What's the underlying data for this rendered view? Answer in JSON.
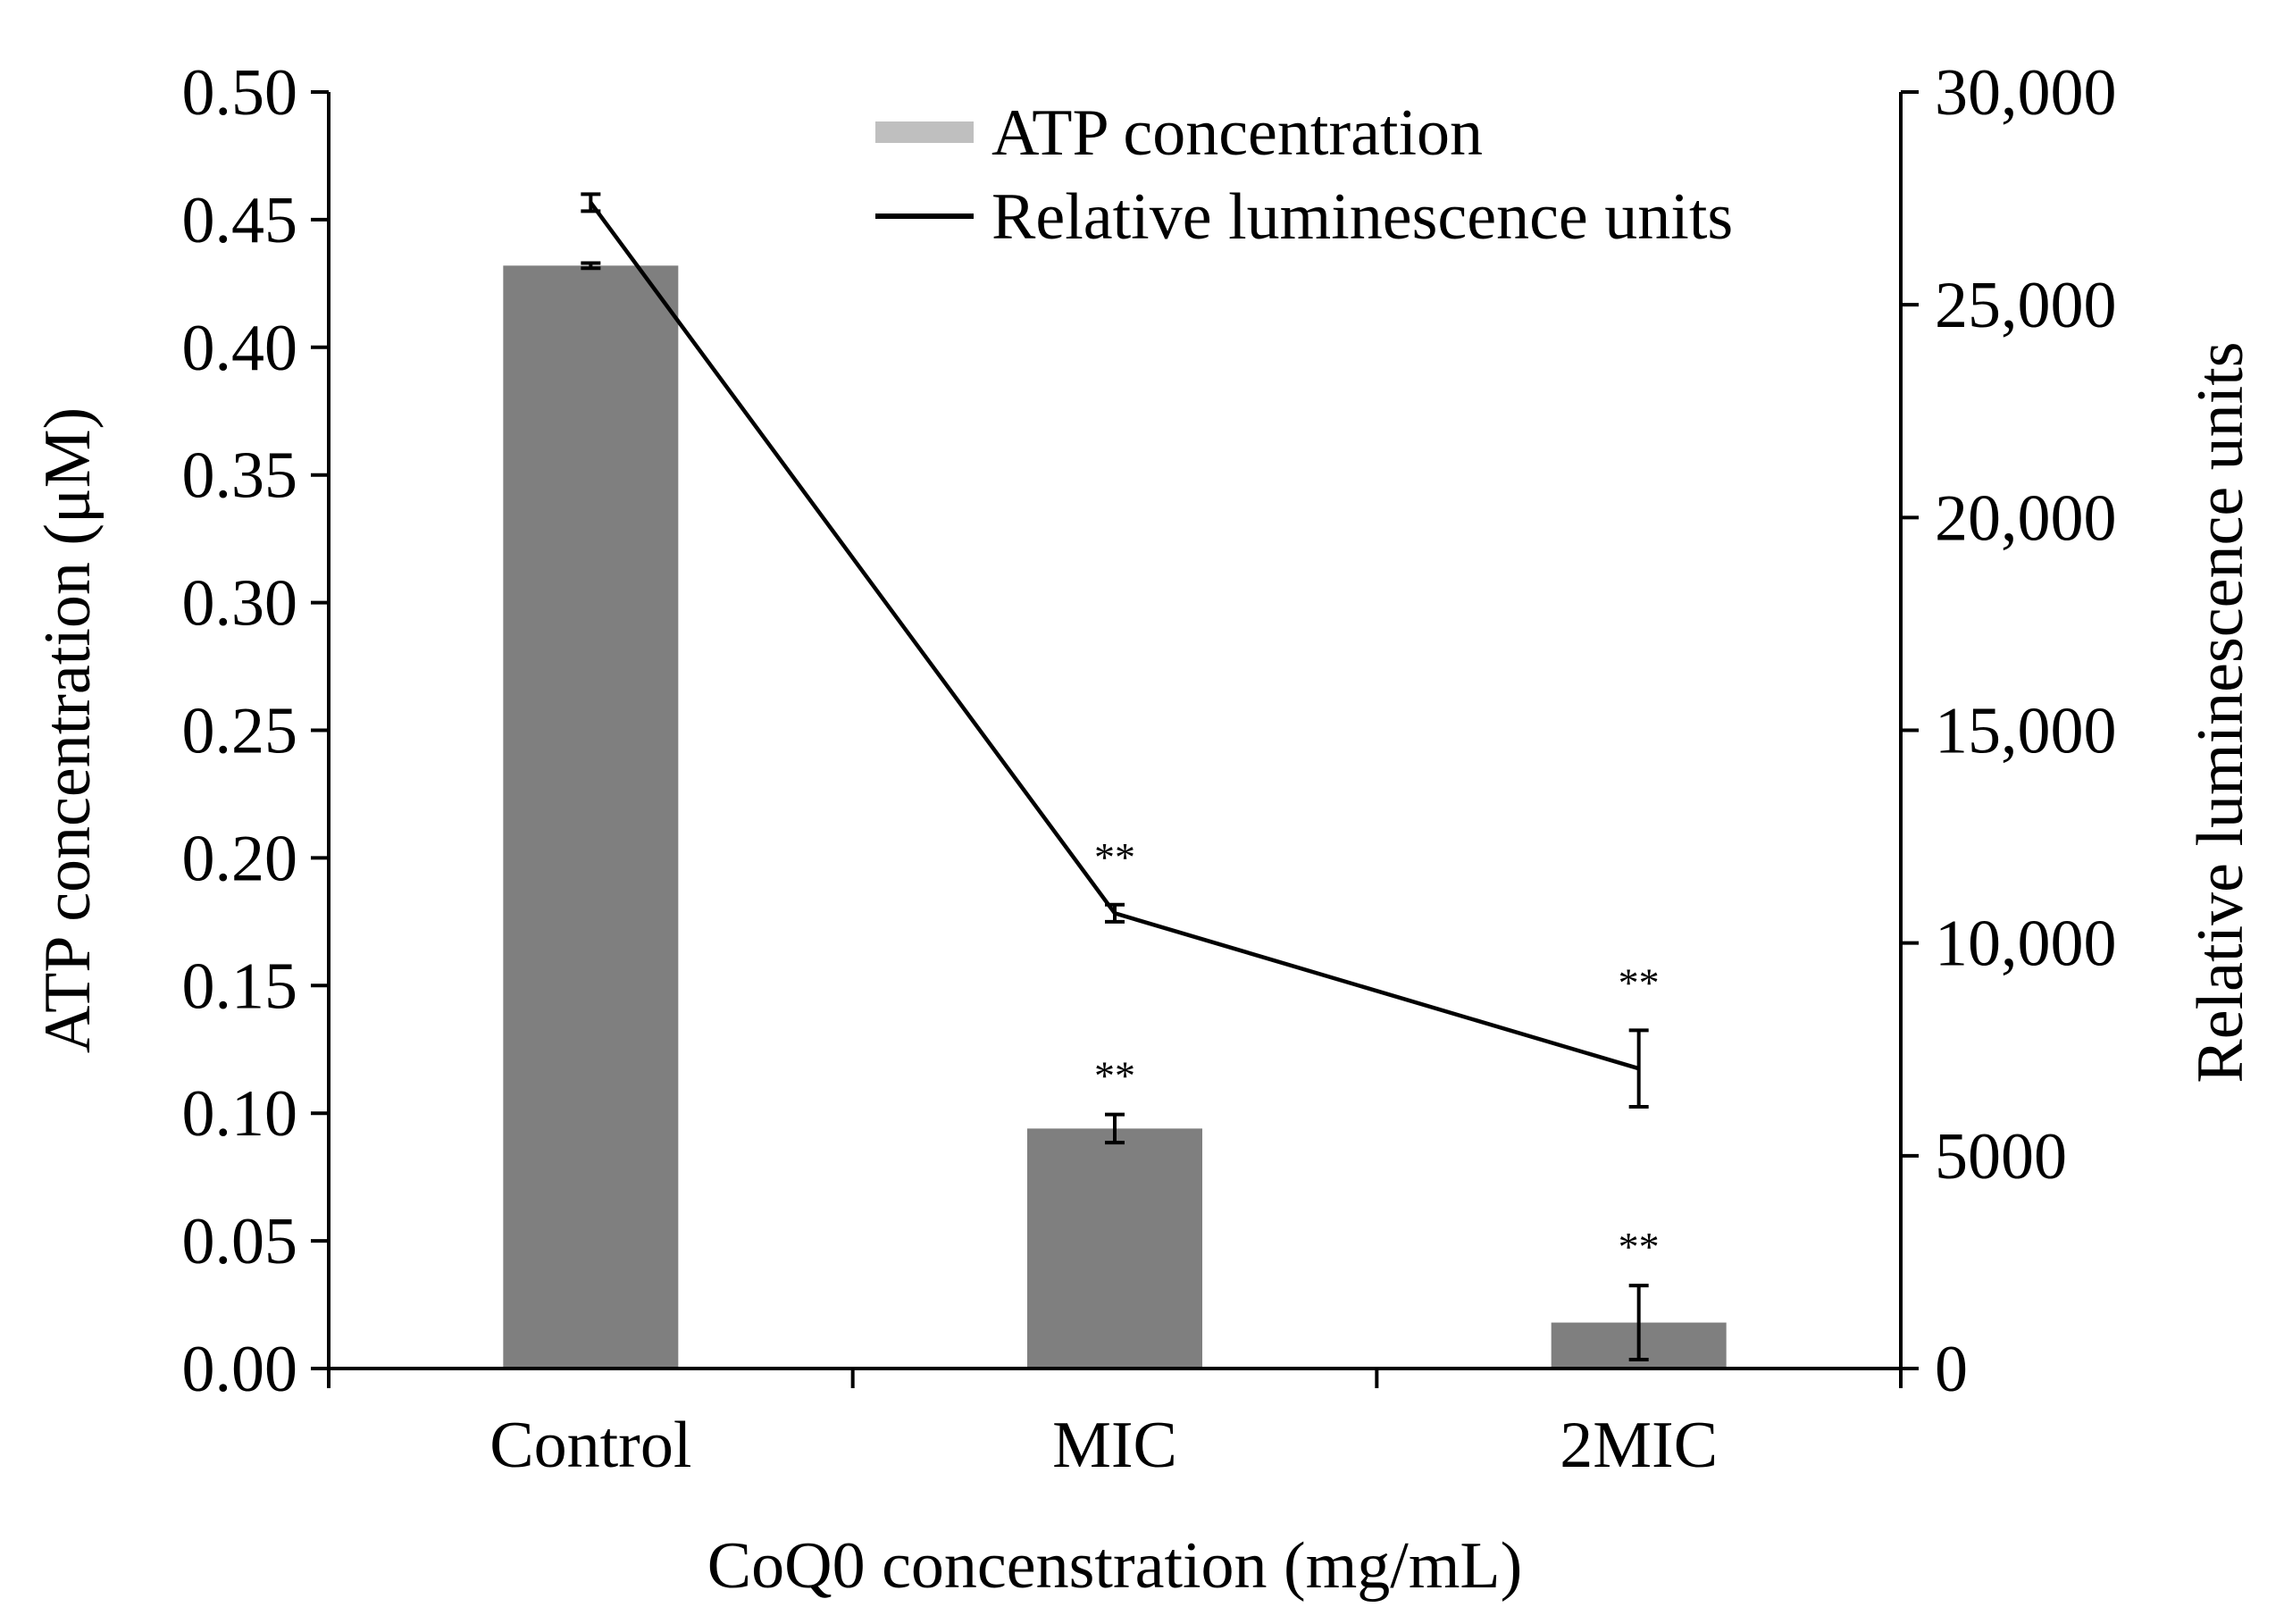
{
  "chart_data": {
    "type": "bar",
    "title": "",
    "xlabel": "CoQ0 concenstration (mg/mL)",
    "ylabel": "ATP concentration (μM)",
    "y2label": "Relative luminescence units",
    "categories": [
      "Control",
      "MIC",
      "2MIC"
    ],
    "ylim": [
      0,
      0.5
    ],
    "y2lim": [
      0,
      30000
    ],
    "yticks": [
      "0.00",
      "0.05",
      "0.10",
      "0.15",
      "0.20",
      "0.25",
      "0.30",
      "0.35",
      "0.40",
      "0.45",
      "0.50"
    ],
    "ytick_values": [
      0,
      0.05,
      0.1,
      0.15,
      0.2,
      0.25,
      0.3,
      0.35,
      0.4,
      0.45,
      0.5
    ],
    "y2ticks": [
      "0",
      "5000",
      "10,000",
      "15,000",
      "20,000",
      "25,000",
      "30,000"
    ],
    "y2tick_values": [
      0,
      5000,
      10000,
      15000,
      20000,
      25000,
      30000
    ],
    "grid": false,
    "legend_position": "top-center",
    "series": [
      {
        "name": "ATP concentration",
        "kind": "bar",
        "axis": "left",
        "color": "#7f7f7f",
        "legend_color": "#bfbfbf",
        "values": [
          0.432,
          0.094,
          0.018
        ],
        "errors": [
          0.001,
          0.0055,
          0.0145
        ],
        "annotations": [
          "",
          "**",
          "**"
        ]
      },
      {
        "name": "Relative luminescence units",
        "kind": "line",
        "axis": "right",
        "color": "#000000",
        "values": [
          27400,
          10700,
          7050
        ],
        "errors": [
          200,
          200,
          900
        ],
        "annotations": [
          "",
          "**",
          "**"
        ]
      }
    ]
  }
}
